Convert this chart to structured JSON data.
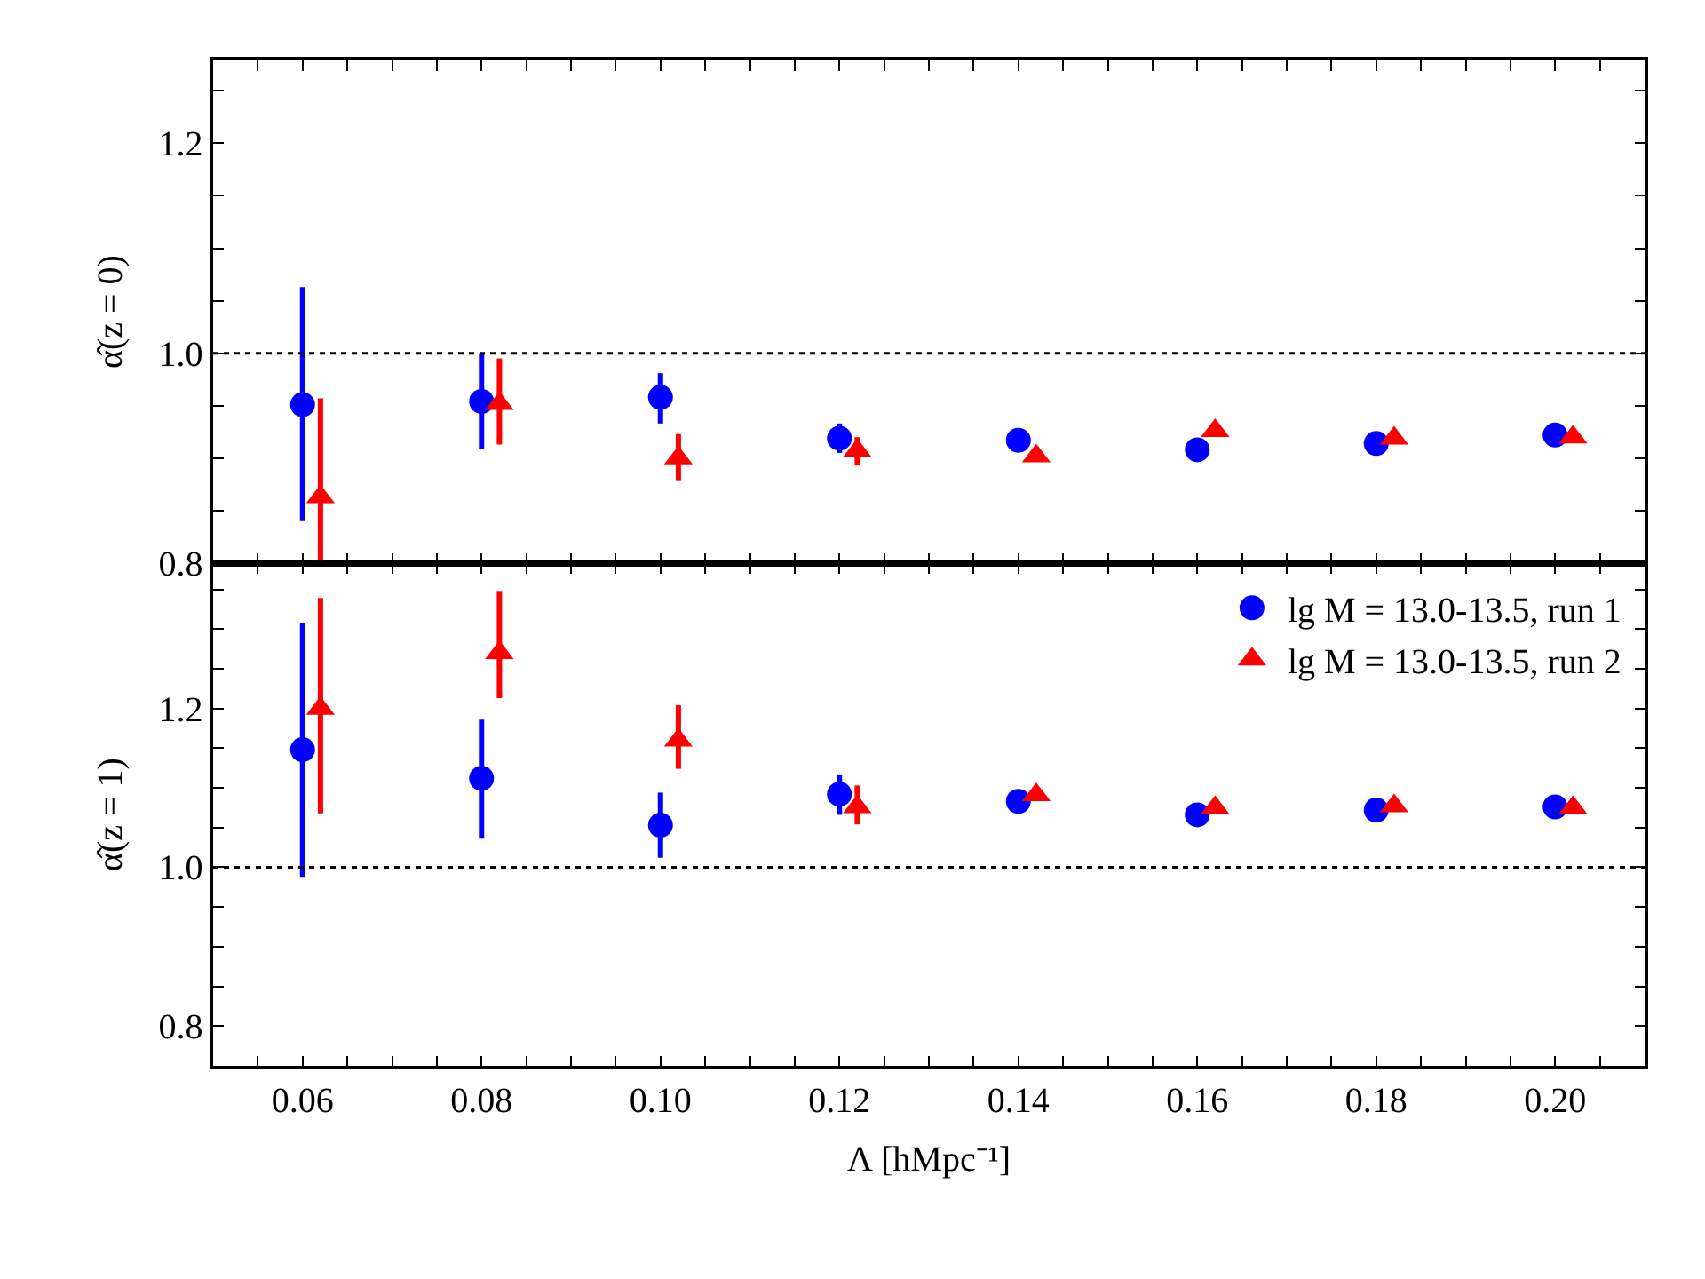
{
  "chart_data": [
    {
      "type": "scatter",
      "ylabel": "α̂(z = 0)",
      "xlim": [
        0.05,
        0.21
      ],
      "ylim": [
        0.8,
        1.279
      ],
      "xticks": [
        {
          "value": 0.055,
          "label": null
        },
        0.06,
        {
          "value": 0.065,
          "label": null
        },
        {
          "value": 0.07,
          "label": null
        },
        {
          "value": 0.075,
          "label": null
        },
        0.08,
        {
          "value": 0.085,
          "label": null
        },
        {
          "value": 0.09,
          "label": null
        },
        {
          "value": 0.095,
          "label": null
        },
        0.1,
        {
          "value": 0.105,
          "label": null
        },
        {
          "value": 0.11,
          "label": null
        },
        {
          "value": 0.115,
          "label": null
        },
        0.12,
        {
          "value": 0.125,
          "label": null
        },
        {
          "value": 0.13,
          "label": null
        },
        {
          "value": 0.135,
          "label": null
        },
        0.14,
        {
          "value": 0.145,
          "label": null
        },
        {
          "value": 0.15,
          "label": null
        },
        {
          "value": 0.155,
          "label": null
        },
        0.16,
        {
          "value": 0.165,
          "label": null
        },
        {
          "value": 0.17,
          "label": null
        },
        {
          "value": 0.175,
          "label": null
        },
        0.18,
        {
          "value": 0.185,
          "label": null
        },
        {
          "value": 0.19,
          "label": null
        },
        {
          "value": 0.195,
          "label": null
        },
        0.2,
        {
          "value": 0.205,
          "label": null
        }
      ],
      "yticks": [
        {
          "value": 0.8,
          "label": "0.8"
        },
        {
          "value": 0.85,
          "label": null
        },
        {
          "value": 0.9,
          "label": null
        },
        {
          "value": 0.95,
          "label": null
        },
        {
          "value": 1.0,
          "label": "1.0"
        },
        {
          "value": 1.05,
          "label": null
        },
        {
          "value": 1.1,
          "label": null
        },
        {
          "value": 1.15,
          "label": null
        },
        {
          "value": 1.2,
          "label": "1.2"
        },
        {
          "value": 1.25,
          "label": null
        }
      ],
      "tick_labels": "y",
      "legend": false,
      "ref_lines": [
        {
          "axis": "y",
          "value": 1.0,
          "color": "#000000",
          "line_style": "dotted"
        }
      ],
      "series": [
        {
          "color": "#0000ff",
          "marker": "circle",
          "x": [
            0.06,
            0.08,
            0.1,
            0.12,
            0.14,
            0.16,
            0.18,
            0.2
          ],
          "values": [
            0.951,
            0.954,
            0.958,
            0.919,
            0.917,
            0.908,
            0.914,
            0.922
          ],
          "errors": [
            [
              0.84,
              1.063
            ],
            [
              0.909,
              1.0
            ],
            [
              0.933,
              0.981
            ],
            [
              0.905,
              0.933
            ],
            null,
            null,
            null,
            null
          ]
        },
        {
          "color": "#ff0000",
          "marker": "triangle",
          "x": [
            0.062,
            0.082,
            0.102,
            0.122,
            0.142,
            0.162,
            0.182,
            0.202
          ],
          "values": [
            0.863,
            0.952,
            0.9,
            0.907,
            0.902,
            0.926,
            0.919,
            0.92
          ],
          "errors": [
            [
              0.8,
              0.957
            ],
            [
              0.913,
              0.995
            ],
            [
              0.879,
              0.923
            ],
            [
              0.893,
              0.92
            ],
            null,
            null,
            null,
            null
          ]
        }
      ]
    },
    {
      "type": "scatter",
      "ylabel": "α̂(z = 1)",
      "xlabel": "Λ [hMpc⁻¹]",
      "xlim": [
        0.05,
        0.21
      ],
      "ylim": [
        0.75,
        1.383
      ],
      "xticks": [
        {
          "value": 0.055,
          "label": null
        },
        0.06,
        {
          "value": 0.065,
          "label": null
        },
        {
          "value": 0.07,
          "label": null
        },
        {
          "value": 0.075,
          "label": null
        },
        0.08,
        {
          "value": 0.085,
          "label": null
        },
        {
          "value": 0.09,
          "label": null
        },
        {
          "value": 0.095,
          "label": null
        },
        {
          "value": 0.1,
          "label": "0.10"
        },
        {
          "value": 0.105,
          "label": null
        },
        {
          "value": 0.11,
          "label": null
        },
        {
          "value": 0.115,
          "label": null
        },
        0.12,
        {
          "value": 0.125,
          "label": null
        },
        {
          "value": 0.13,
          "label": null
        },
        {
          "value": 0.135,
          "label": null
        },
        0.14,
        {
          "value": 0.145,
          "label": null
        },
        {
          "value": 0.15,
          "label": null
        },
        {
          "value": 0.155,
          "label": null
        },
        0.16,
        {
          "value": 0.165,
          "label": null
        },
        {
          "value": 0.17,
          "label": null
        },
        {
          "value": 0.175,
          "label": null
        },
        0.18,
        {
          "value": 0.185,
          "label": null
        },
        {
          "value": 0.19,
          "label": null
        },
        {
          "value": 0.195,
          "label": null
        },
        {
          "value": 0.2,
          "label": "0.20"
        },
        {
          "value": 0.205,
          "label": null
        }
      ],
      "yticks": [
        {
          "value": 0.8,
          "label": "0.8"
        },
        {
          "value": 0.85,
          "label": null
        },
        {
          "value": 0.9,
          "label": null
        },
        {
          "value": 0.95,
          "label": null
        },
        {
          "value": 1.0,
          "label": "1.0"
        },
        {
          "value": 1.05,
          "label": null
        },
        {
          "value": 1.1,
          "label": null
        },
        {
          "value": 1.15,
          "label": null
        },
        {
          "value": 1.2,
          "label": "1.2"
        },
        {
          "value": 1.25,
          "label": null
        },
        {
          "value": 1.3,
          "label": null
        },
        {
          "value": 1.35,
          "label": null
        }
      ],
      "legend": "top right",
      "ref_lines": [
        {
          "axis": "y",
          "value": 1.0,
          "color": "#000000",
          "line_style": "dotted"
        }
      ],
      "series": [
        {
          "name": "lg M = 13.0-13.5, run 1",
          "color": "#0000ff",
          "marker": "circle",
          "x": [
            0.06,
            0.08,
            0.1,
            0.12,
            0.14,
            0.16,
            0.18,
            0.2
          ],
          "values": [
            1.148,
            1.112,
            1.053,
            1.092,
            1.083,
            1.066,
            1.072,
            1.076
          ],
          "errors": [
            [
              0.988,
              1.308
            ],
            [
              1.036,
              1.186
            ],
            [
              1.012,
              1.094
            ],
            [
              1.066,
              1.117
            ],
            null,
            null,
            null,
            null
          ]
        },
        {
          "name": "lg M = 13.0-13.5, run 2",
          "color": "#ff0000",
          "marker": "triangle",
          "x": [
            0.062,
            0.082,
            0.102,
            0.122,
            0.142,
            0.162,
            0.182,
            0.202
          ],
          "values": [
            1.2,
            1.27,
            1.16,
            1.076,
            1.091,
            1.075,
            1.077,
            1.075
          ],
          "errors": [
            [
              1.068,
              1.339
            ],
            [
              1.213,
              1.348
            ],
            [
              1.124,
              1.204
            ],
            [
              1.054,
              1.103
            ],
            null,
            null,
            null,
            null
          ]
        }
      ]
    }
  ]
}
